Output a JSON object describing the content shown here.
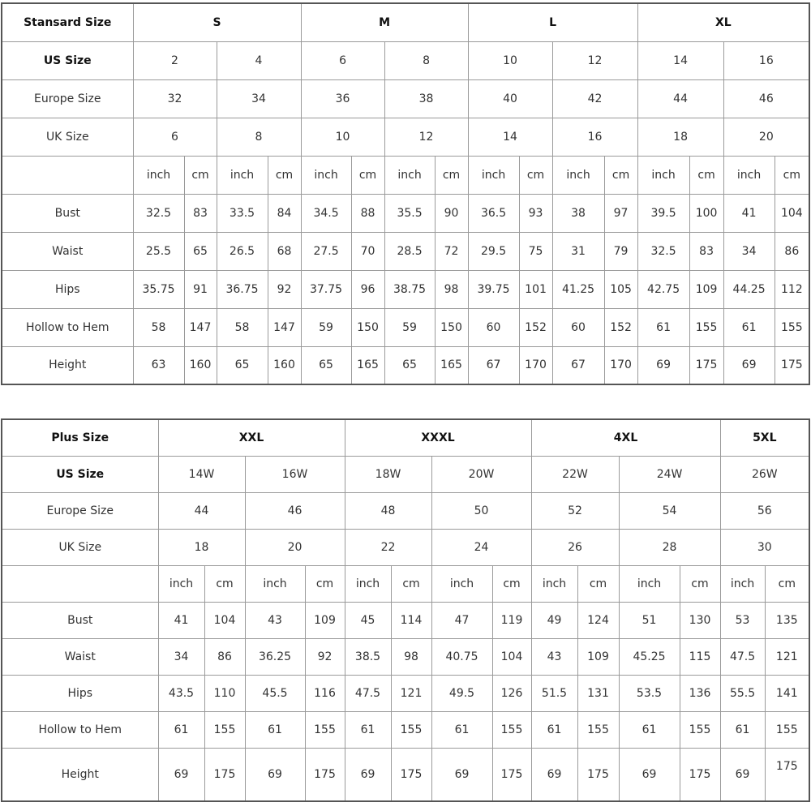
{
  "standard_table": {
    "header_label": "Stansard Size",
    "size_groups": [
      "S",
      "M",
      "L",
      "XL"
    ],
    "rows": [
      {
        "label": "US Size",
        "bold": true,
        "values": [
          "2",
          "4",
          "6",
          "8",
          "10",
          "12",
          "14",
          "16"
        ]
      },
      {
        "label": "Europe Size",
        "values": [
          "32",
          "34",
          "36",
          "38",
          "40",
          "42",
          "44",
          "46"
        ]
      },
      {
        "label": "UK Size",
        "values": [
          "6",
          "8",
          "10",
          "12",
          "14",
          "16",
          "18",
          "20"
        ]
      }
    ],
    "units": [
      "inch",
      "cm",
      "inch",
      "cm",
      "inch",
      "cm",
      "inch",
      "cm",
      "inch",
      "cm",
      "inch",
      "cm",
      "inch",
      "cm",
      "inch",
      "cm"
    ],
    "measurements": [
      {
        "label": "Bust",
        "values": [
          "32.5",
          "83",
          "33.5",
          "84",
          "34.5",
          "88",
          "35.5",
          "90",
          "36.5",
          "93",
          "38",
          "97",
          "39.5",
          "100",
          "41",
          "104"
        ]
      },
      {
        "label": "Waist",
        "values": [
          "25.5",
          "65",
          "26.5",
          "68",
          "27.5",
          "70",
          "28.5",
          "72",
          "29.5",
          "75",
          "31",
          "79",
          "32.5",
          "83",
          "34",
          "86"
        ]
      },
      {
        "label": "Hips",
        "values": [
          "35.75",
          "91",
          "36.75",
          "92",
          "37.75",
          "96",
          "38.75",
          "98",
          "39.75",
          "101",
          "41.25",
          "105",
          "42.75",
          "109",
          "44.25",
          "112"
        ]
      },
      {
        "label": "Hollow to Hem",
        "values": [
          "58",
          "147",
          "58",
          "147",
          "59",
          "150",
          "59",
          "150",
          "60",
          "152",
          "60",
          "152",
          "61",
          "155",
          "61",
          "155"
        ]
      },
      {
        "label": "Height",
        "values": [
          "63",
          "160",
          "65",
          "160",
          "65",
          "165",
          "65",
          "165",
          "67",
          "170",
          "67",
          "170",
          "69",
          "175",
          "69",
          "175"
        ]
      }
    ]
  },
  "plus_table": {
    "header_label": "Plus Size",
    "size_groups": [
      {
        "name": "XXL",
        "span": 2
      },
      {
        "name": "XXXL",
        "span": 2
      },
      {
        "name": "4XL",
        "span": 2
      },
      {
        "name": "5XL",
        "span": 1
      }
    ],
    "rows": [
      {
        "label": "US Size",
        "bold": true,
        "values": [
          "14W",
          "16W",
          "18W",
          "20W",
          "22W",
          "24W",
          "26W"
        ]
      },
      {
        "label": "Europe Size",
        "values": [
          "44",
          "46",
          "48",
          "50",
          "52",
          "54",
          "56"
        ]
      },
      {
        "label": "UK Size",
        "values": [
          "18",
          "20",
          "22",
          "24",
          "26",
          "28",
          "30"
        ]
      }
    ],
    "units": [
      "inch",
      "cm",
      "inch",
      "cm",
      "inch",
      "cm",
      "inch",
      "cm",
      "inch",
      "cm",
      "inch",
      "cm",
      "inch",
      "cm"
    ],
    "measurements": [
      {
        "label": "Bust",
        "values": [
          "41",
          "104",
          "43",
          "109",
          "45",
          "114",
          "47",
          "119",
          "49",
          "124",
          "51",
          "130",
          "53",
          "135"
        ]
      },
      {
        "label": "Waist",
        "values": [
          "34",
          "86",
          "36.25",
          "92",
          "38.5",
          "98",
          "40.75",
          "104",
          "43",
          "109",
          "45.25",
          "115",
          "47.5",
          "121"
        ]
      },
      {
        "label": "Hips",
        "values": [
          "43.5",
          "110",
          "45.5",
          "116",
          "47.5",
          "121",
          "49.5",
          "126",
          "51.5",
          "131",
          "53.5",
          "136",
          "55.5",
          "141"
        ]
      },
      {
        "label": "Hollow to Hem",
        "values": [
          "61",
          "155",
          "61",
          "155",
          "61",
          "155",
          "61",
          "155",
          "61",
          "155",
          "61",
          "155",
          "61",
          "155"
        ]
      },
      {
        "label": "Height",
        "values": [
          "69",
          "175",
          "69",
          "175",
          "69",
          "175",
          "69",
          "175",
          "69",
          "175",
          "69",
          "175",
          "69",
          "175"
        ]
      }
    ]
  }
}
